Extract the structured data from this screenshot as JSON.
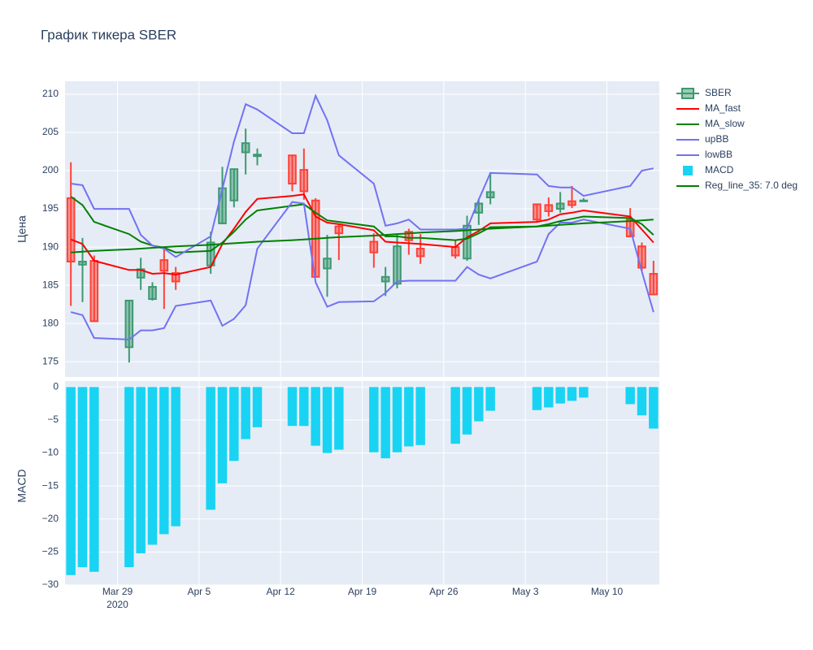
{
  "chart_data": [
    {
      "type": "candlestick",
      "title": "График тикера SBER",
      "ylabel": "Цена",
      "x": [
        "2020-03-25",
        "2020-03-26",
        "2020-03-27",
        "2020-03-30",
        "2020-03-31",
        "2020-04-01",
        "2020-04-02",
        "2020-04-03",
        "2020-04-06",
        "2020-04-07",
        "2020-04-08",
        "2020-04-09",
        "2020-04-10",
        "2020-04-13",
        "2020-04-14",
        "2020-04-15",
        "2020-04-16",
        "2020-04-17",
        "2020-04-20",
        "2020-04-21",
        "2020-04-22",
        "2020-04-23",
        "2020-04-24",
        "2020-04-27",
        "2020-04-28",
        "2020-04-29",
        "2020-04-30",
        "2020-05-04",
        "2020-05-05",
        "2020-05-06",
        "2020-05-07",
        "2020-05-08",
        "2020-05-12",
        "2020-05-13",
        "2020-05-14"
      ],
      "xlim": [
        "2020-03-24 12:00",
        "2020-05-14 12:00"
      ],
      "xticks": [
        {
          "value": "2020-03-29",
          "label": "Mar 29"
        },
        {
          "value": "2020-04-05",
          "label": "Apr 5"
        },
        {
          "value": "2020-04-12",
          "label": "Apr 12"
        },
        {
          "value": "2020-04-19",
          "label": "Apr 19"
        },
        {
          "value": "2020-04-26",
          "label": "Apr 26"
        },
        {
          "value": "2020-05-03",
          "label": "May 3"
        },
        {
          "value": "2020-05-10",
          "label": "May 10"
        }
      ],
      "x_year_label": "2020",
      "ylim": [
        173,
        211.7
      ],
      "yticks": [
        175,
        180,
        185,
        190,
        195,
        200,
        205,
        210
      ],
      "grid": true,
      "legend": "right",
      "candles": {
        "name": "SBER",
        "increasing_color": "#3d9970",
        "decreasing_color": "#ff4136",
        "open": [
          196.4,
          187.7,
          188.2,
          176.9,
          186.0,
          183.2,
          188.3,
          186.6,
          187.6,
          193.1,
          196.1,
          202.4,
          201.9,
          202.0,
          200.1,
          196.1,
          187.2,
          192.7,
          190.7,
          185.5,
          185.2,
          192.0,
          189.8,
          190.0,
          188.5,
          194.5,
          196.5,
          195.6,
          195.5,
          195.0,
          196.0,
          196.0,
          193.6,
          190.1,
          186.5
        ],
        "high": [
          201.1,
          191.2,
          188.9,
          183.1,
          188.6,
          185.4,
          189.8,
          187.4,
          192.0,
          200.5,
          200.3,
          205.5,
          202.9,
          202.1,
          202.9,
          196.4,
          191.6,
          192.9,
          191.8,
          187.4,
          191.7,
          192.4,
          191.7,
          190.9,
          194.1,
          196.3,
          199.8,
          195.7,
          196.5,
          197.2,
          198.0,
          196.4,
          195.1,
          190.6,
          188.2
        ],
        "low": [
          182.3,
          182.8,
          180.2,
          174.9,
          184.4,
          183.0,
          181.9,
          184.4,
          186.5,
          193.1,
          195.2,
          199.5,
          200.7,
          197.3,
          196.2,
          186.1,
          183.5,
          188.3,
          187.3,
          183.6,
          184.6,
          189.0,
          187.8,
          188.5,
          188.2,
          192.9,
          195.6,
          193.3,
          194.0,
          194.5,
          195.1,
          195.9,
          191.3,
          186.9,
          183.7
        ],
        "close": [
          188.1,
          188.1,
          180.3,
          183.0,
          187.1,
          184.8,
          186.9,
          185.5,
          190.6,
          197.7,
          200.2,
          203.6,
          202.1,
          198.3,
          197.3,
          186.1,
          188.5,
          191.8,
          189.3,
          186.1,
          190.1,
          190.9,
          188.8,
          188.9,
          192.8,
          195.7,
          197.2,
          193.6,
          194.7,
          195.7,
          195.5,
          196.1,
          191.4,
          187.3,
          183.8
        ]
      },
      "series": [
        {
          "name": "MA_fast",
          "color": "#ff0000",
          "values": [
            191.0,
            190.4,
            188.2,
            187.0,
            187.0,
            186.5,
            186.6,
            186.4,
            187.4,
            190.4,
            192.4,
            194.6,
            196.3,
            196.7,
            196.9,
            194.0,
            193.2,
            193.0,
            192.2,
            190.7,
            190.6,
            190.5,
            190.4,
            190.0,
            191.3,
            192.1,
            193.1,
            193.3,
            193.6,
            194.3,
            194.5,
            194.8,
            194.0,
            192.3,
            190.6
          ]
        },
        {
          "name": "MA_slow",
          "color": "#008000",
          "values": [
            196.6,
            195.5,
            193.3,
            191.7,
            190.7,
            190.2,
            189.9,
            189.3,
            189.5,
            190.6,
            192.0,
            193.6,
            194.8,
            195.4,
            195.6,
            194.5,
            193.5,
            193.3,
            192.7,
            191.4,
            191.4,
            191.2,
            191.2,
            190.9,
            191.1,
            191.8,
            192.6,
            192.7,
            193.0,
            193.4,
            193.7,
            194.0,
            193.8,
            193.0,
            191.6
          ]
        },
        {
          "name": "upBB",
          "color": "#7272f2",
          "values": [
            198.3,
            198.1,
            195.0,
            195.0,
            191.6,
            190.2,
            189.8,
            188.7,
            191.4,
            197.6,
            203.8,
            208.7,
            208.0,
            204.9,
            204.9,
            209.8,
            206.6,
            202.0,
            198.3,
            192.8,
            193.1,
            193.6,
            192.3,
            192.3,
            192.4,
            196.2,
            199.7,
            199.5,
            198.0,
            197.8,
            197.8,
            196.7,
            198.0,
            200.0,
            200.3
          ]
        },
        {
          "name": "lowBB",
          "color": "#7272f2",
          "values": [
            181.5,
            181.1,
            178.1,
            177.9,
            179.1,
            179.1,
            179.4,
            182.3,
            183.0,
            179.7,
            180.6,
            182.4,
            189.8,
            195.9,
            195.7,
            185.4,
            182.2,
            182.8,
            182.9,
            184.0,
            185.5,
            185.6,
            185.6,
            185.6,
            187.4,
            186.4,
            185.9,
            188.1,
            191.7,
            193.2,
            193.2,
            193.6,
            192.4,
            186.8,
            181.5
          ]
        },
        {
          "name": "Reg_line_35: 7.0 deg",
          "color": "#008000",
          "values": [
            189.3,
            189.4,
            189.5,
            189.7,
            189.8,
            189.9,
            190.0,
            190.1,
            190.3,
            190.4,
            190.5,
            190.6,
            190.7,
            190.9,
            191.0,
            191.1,
            191.2,
            191.3,
            191.5,
            191.6,
            191.7,
            191.8,
            191.9,
            192.1,
            192.2,
            192.3,
            192.4,
            192.7,
            192.8,
            192.9,
            193.0,
            193.1,
            193.4,
            193.5,
            193.6
          ]
        }
      ]
    },
    {
      "type": "bar",
      "ylabel": "MACD",
      "ylim": [
        -30,
        0.9
      ],
      "yticks": [
        0,
        {
          "value": -5,
          "label": "−5"
        },
        {
          "value": -10,
          "label": "−10"
        },
        {
          "value": -15,
          "label": "−15"
        },
        {
          "value": -20,
          "label": "−20"
        },
        {
          "value": -25,
          "label": "−25"
        },
        {
          "value": -30,
          "label": "−30"
        }
      ],
      "grid": true,
      "series": [
        {
          "name": "MACD",
          "color": "#19d3f3",
          "values": [
            -28.5,
            -27.3,
            -28.0,
            -27.3,
            -25.2,
            -23.9,
            -22.3,
            -21.1,
            -18.6,
            -14.6,
            -11.2,
            -7.9,
            -6.1,
            -5.9,
            -5.9,
            -8.9,
            -10.0,
            -9.5,
            -9.9,
            -10.8,
            -9.9,
            -9.0,
            -8.8,
            -8.6,
            -7.2,
            -5.2,
            -3.6,
            -3.5,
            -3.1,
            -2.5,
            -2.1,
            -1.6,
            -2.6,
            -4.3,
            -6.3
          ]
        }
      ]
    }
  ]
}
